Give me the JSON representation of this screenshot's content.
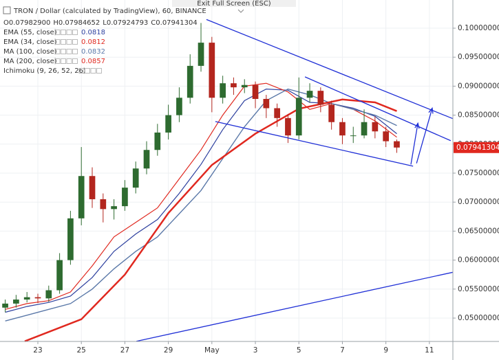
{
  "chart_data": {
    "type": "candlestick",
    "title": "TRON / Dollar (calculated by TradingView), 60, BINANCE",
    "ohlc": [
      "O0.07982900",
      "H0.07984652",
      "L0.07924793",
      "C0.07941304"
    ],
    "exit_button": "Exit Full Screen (ESC)",
    "extra_indicator": "Ichimoku (9, 26, 52, 26)",
    "x": [
      21.5,
      22,
      22.5,
      23,
      23.5,
      24,
      24.5,
      25,
      25.5,
      26,
      26.5,
      27,
      27.5,
      28,
      28.5,
      29,
      29.5,
      30,
      30.5,
      31,
      31.5,
      32,
      32.5,
      33,
      33.5,
      34,
      34.5,
      35,
      35.5,
      36,
      36.5,
      37,
      37.5,
      38,
      38.5,
      39,
      39.5
    ],
    "open": [
      0.0518,
      0.0525,
      0.0532,
      0.0536,
      0.0534,
      0.0548,
      0.06,
      0.0672,
      0.0745,
      0.0705,
      0.0688,
      0.0693,
      0.0725,
      0.0758,
      0.079,
      0.082,
      0.085,
      0.088,
      0.0935,
      0.0975,
      0.088,
      0.0905,
      0.0898,
      0.0902,
      0.0878,
      0.0862,
      0.0845,
      0.0815,
      0.088,
      0.0892,
      0.0868,
      0.0838,
      0.0815,
      0.0815,
      0.0838,
      0.0822,
      0.0805
    ],
    "high": [
      0.0532,
      0.054,
      0.0545,
      0.0542,
      0.0556,
      0.0612,
      0.0685,
      0.0795,
      0.076,
      0.0715,
      0.0705,
      0.0738,
      0.077,
      0.0805,
      0.0835,
      0.0868,
      0.0898,
      0.0955,
      0.1009,
      0.0985,
      0.0918,
      0.0915,
      0.0912,
      0.0908,
      0.0885,
      0.087,
      0.0852,
      0.0915,
      0.0905,
      0.0898,
      0.0875,
      0.0845,
      0.083,
      0.086,
      0.0848,
      0.083,
      0.0808
    ],
    "low": [
      0.051,
      0.0518,
      0.0527,
      0.0526,
      0.0528,
      0.0542,
      0.0592,
      0.066,
      0.069,
      0.0665,
      0.067,
      0.0685,
      0.0715,
      0.0748,
      0.078,
      0.0808,
      0.0838,
      0.087,
      0.0925,
      0.0855,
      0.087,
      0.0885,
      0.0888,
      0.0862,
      0.0845,
      0.083,
      0.0802,
      0.0808,
      0.0872,
      0.0855,
      0.0825,
      0.08,
      0.0802,
      0.081,
      0.081,
      0.0795,
      0.0785
    ],
    "close": [
      0.0525,
      0.0532,
      0.0536,
      0.0534,
      0.0548,
      0.06,
      0.0672,
      0.0745,
      0.0705,
      0.0688,
      0.0693,
      0.0725,
      0.0758,
      0.079,
      0.082,
      0.085,
      0.088,
      0.0935,
      0.0975,
      0.088,
      0.0905,
      0.0898,
      0.0902,
      0.0878,
      0.0862,
      0.0845,
      0.0815,
      0.088,
      0.0892,
      0.0868,
      0.0838,
      0.0815,
      0.0815,
      0.0838,
      0.0822,
      0.0805,
      0.07941304
    ],
    "up_color": "#2e6b30",
    "down_color": "#b3261e",
    "series": [
      {
        "name": "EMA (55, close)",
        "value_label": "0.0818",
        "color": "#2c3f9e",
        "width": 1.2,
        "x": [
          21.5,
          22.5,
          23.5,
          24.5,
          25.5,
          26.5,
          27.5,
          28.5,
          29.5,
          30.5,
          31.5,
          32.5,
          33.5,
          34.5,
          35.5,
          36.5,
          37.5,
          38.5,
          39.5
        ],
        "values": [
          0.051,
          0.052,
          0.0527,
          0.0538,
          0.057,
          0.0615,
          0.0645,
          0.067,
          0.0715,
          0.0765,
          0.0825,
          0.0875,
          0.0895,
          0.0893,
          0.0872,
          0.087,
          0.0862,
          0.0848,
          0.0818
        ]
      },
      {
        "name": "EMA (34, close)",
        "value_label": "0.0812",
        "color": "#e0281f",
        "width": 1.2,
        "x": [
          21.5,
          22.5,
          23.5,
          24.5,
          25.5,
          26.5,
          27.5,
          28.5,
          29.5,
          30.5,
          31.5,
          32.5,
          33.5,
          34.5,
          35.5,
          36.5,
          37.5,
          38.5,
          39.5
        ],
        "values": [
          0.0515,
          0.0525,
          0.053,
          0.0545,
          0.059,
          0.064,
          0.0665,
          0.069,
          0.074,
          0.079,
          0.085,
          0.09,
          0.0905,
          0.089,
          0.086,
          0.087,
          0.086,
          0.084,
          0.0812
        ]
      },
      {
        "name": "MA (100, close)",
        "value_label": "0.0832",
        "color": "#5a78a8",
        "width": 1.4,
        "x": [
          21.5,
          22.5,
          23.5,
          24.5,
          25.5,
          26.5,
          27.5,
          28.5,
          29.5,
          30.5,
          31.5,
          32.5,
          33.5,
          34.5,
          35.5,
          36.5,
          37.5,
          38.5,
          39.5
        ],
        "values": [
          0.0495,
          0.0505,
          0.0515,
          0.0525,
          0.055,
          0.0585,
          0.0615,
          0.064,
          0.068,
          0.072,
          0.0775,
          0.083,
          0.0875,
          0.0895,
          0.0885,
          0.087,
          0.086,
          0.085,
          0.0832
        ]
      },
      {
        "name": "MA (200, close)",
        "value_label": "0.0857",
        "color": "#e0281f",
        "width": 2.5,
        "x": [
          22.4,
          25,
          27,
          29,
          31,
          33,
          35,
          37,
          38.5,
          39.5
        ],
        "values": [
          0.046,
          0.0498,
          0.0575,
          0.0681,
          0.0764,
          0.0818,
          0.0861,
          0.0877,
          0.0872,
          0.0857
        ]
      }
    ],
    "trendlines": [
      {
        "x": [
          30.75,
          42.08
        ],
        "y": [
          0.1015,
          0.0844
        ]
      },
      {
        "x": [
          31.16,
          40.25
        ],
        "y": [
          0.0839,
          0.0762
        ]
      },
      {
        "x": [
          35.28,
          41.98
        ],
        "y": [
          0.0916,
          0.0806
        ]
      },
      {
        "x": [
          27.53,
          42.08
        ],
        "y": [
          0.046,
          0.0579
        ]
      }
    ],
    "arrows": [
      {
        "x": [
          40.15,
          40.47
        ],
        "y": [
          0.0765,
          0.0836
        ]
      },
      {
        "x": [
          40.41,
          41.13
        ],
        "y": [
          0.0767,
          0.0862
        ]
      }
    ],
    "trend_color": "#1f2fd6",
    "last_price": 0.07941304,
    "last_price_label": "0.07941304",
    "last_price_color": "#e0281f",
    "xlim": [
      21.26,
      42.08
    ],
    "xticks": [
      23,
      25,
      27,
      29,
      {
        "value": 31,
        "label": "May"
      },
      {
        "value": 33,
        "label": "3"
      },
      {
        "value": 35,
        "label": "5"
      },
      {
        "value": 37,
        "label": "7"
      },
      {
        "value": 39,
        "label": "9"
      },
      {
        "value": 41,
        "label": "11"
      }
    ],
    "ylim": [
      0.04597,
      0.10486
    ],
    "yticks": [
      {
        "value": 0.05,
        "label": "0.05000000"
      },
      {
        "value": 0.055,
        "label": "0.05500000"
      },
      {
        "value": 0.06,
        "label": "0.06000000"
      },
      {
        "value": 0.065,
        "label": "0.06500000"
      },
      {
        "value": 0.07,
        "label": "0.07000000"
      },
      {
        "value": 0.075,
        "label": "0.07500000"
      },
      {
        "value": 0.08,
        "label": "0.08000000"
      },
      {
        "value": 0.085,
        "label": "0.08500000"
      },
      {
        "value": 0.09,
        "label": "0.09000000"
      },
      {
        "value": 0.095,
        "label": "0.09500000"
      },
      {
        "value": 0.1,
        "label": "0.10000000"
      }
    ],
    "grid": true
  }
}
